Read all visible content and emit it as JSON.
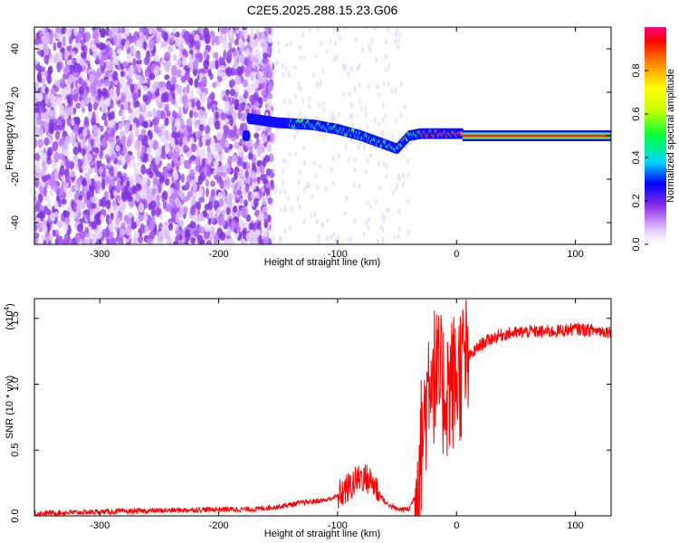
{
  "title": "C2E5.2025.288.15.23.G06",
  "chart_data": [
    {
      "type": "heatmap",
      "xlabel": "Height of straight line (km)",
      "ylabel": "Frequency (Hz)",
      "xlim": [
        -355,
        130
      ],
      "ylim": [
        -50,
        50
      ],
      "xticks": [
        -300,
        -200,
        -100,
        0,
        100
      ],
      "yticks": [
        -40,
        -20,
        0,
        20,
        40
      ],
      "colorbar": {
        "label": "Normalized spectral amplitude",
        "range": [
          0,
          1
        ],
        "ticks": [
          "0.0",
          "0.2",
          "0.4",
          "0.6",
          "0.8"
        ],
        "tick_values": [
          0,
          0.2,
          0.4,
          0.6,
          0.8
        ]
      },
      "features": [
        {
          "name": "ridge",
          "x": [
            -175,
            -150,
            -120,
            -100,
            -80,
            -60,
            -50,
            -40,
            -30,
            -10,
            0,
            130
          ],
          "y": [
            8,
            6,
            5,
            3,
            0,
            -4,
            -6,
            0,
            1,
            1,
            1,
            0
          ]
        }
      ]
    },
    {
      "type": "line",
      "xlabel": "Height of straight line (km)",
      "ylabel": "SNR (10 * v/v)",
      "y_multiplier": "(x10",
      "y_multiplier_exp": "4",
      "xlim": [
        -355,
        130
      ],
      "ylim": [
        0,
        1.65
      ],
      "xticks": [
        -300,
        -200,
        -100,
        0,
        100
      ],
      "yticks": [
        "0.0",
        "0.5",
        "1.0",
        "1.5"
      ],
      "ytick_values": [
        0,
        0.5,
        1.0,
        1.5
      ],
      "series": [
        {
          "x": [
            -355,
            -300,
            -250,
            -200,
            -170,
            -150,
            -130,
            -110,
            -100,
            -90,
            -80,
            -70,
            -60,
            -50,
            -40,
            -35,
            -30,
            -25,
            -22,
            -20,
            -15,
            -10,
            -5,
            0,
            10,
            20,
            30,
            40,
            60,
            80,
            100,
            130
          ],
          "y": [
            0.02,
            0.03,
            0.04,
            0.05,
            0.05,
            0.07,
            0.1,
            0.12,
            0.15,
            0.22,
            0.3,
            0.25,
            0.1,
            0.05,
            0.05,
            0.15,
            0.5,
            0.9,
            1.2,
            1.1,
            1.0,
            0.95,
            1.0,
            1.05,
            1.2,
            1.3,
            1.35,
            1.38,
            1.4,
            1.4,
            1.42,
            1.4
          ],
          "color": "#ff0000"
        }
      ]
    }
  ]
}
